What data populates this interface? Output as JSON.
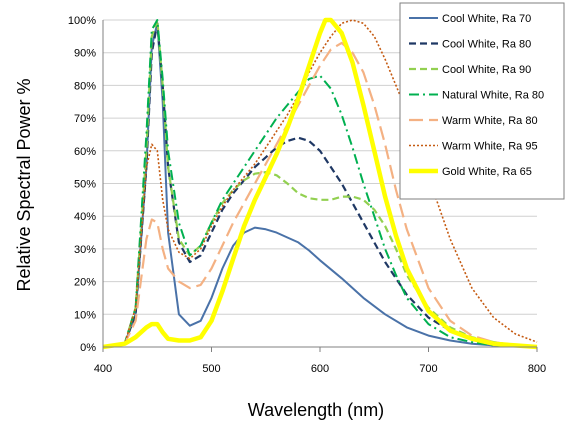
{
  "chart_data": {
    "type": "line",
    "title": "",
    "xlabel": "Wavelength (nm)",
    "ylabel": "Relative Spectral Power %",
    "xlim": [
      400,
      800
    ],
    "ylim": [
      0,
      100
    ],
    "x_ticks": [
      400,
      500,
      600,
      700,
      800
    ],
    "x_tick_labels": [
      "400",
      "500",
      "600",
      "700",
      "800"
    ],
    "y_ticks": [
      0,
      10,
      20,
      30,
      40,
      50,
      60,
      70,
      80,
      90,
      100
    ],
    "y_tick_labels": [
      "0%",
      "10%",
      "20%",
      "30%",
      "40%",
      "50%",
      "60%",
      "70%",
      "80%",
      "90%",
      "100%"
    ],
    "grid": "horizontal",
    "legend_position": "top-right",
    "series": [
      {
        "name": "Cool White, Ra 70",
        "color": "#4a72a8",
        "dash": "solid",
        "x": [
          400,
          420,
          430,
          440,
          445,
          450,
          455,
          460,
          470,
          480,
          490,
          500,
          510,
          520,
          530,
          540,
          550,
          560,
          570,
          580,
          590,
          600,
          620,
          640,
          660,
          680,
          700,
          720,
          740,
          760,
          780,
          800
        ],
        "y": [
          0,
          1,
          10,
          55,
          92,
          99,
          75,
          35,
          10,
          6.5,
          8,
          15,
          24,
          31,
          35,
          36.5,
          36,
          35,
          33.5,
          32,
          29.5,
          26.5,
          21,
          15,
          10,
          6,
          3.5,
          2,
          1,
          0.5,
          0.2,
          0
        ]
      },
      {
        "name": "Cool White, Ra 80",
        "color": "#1f3864",
        "dash": "dashed",
        "x": [
          400,
          420,
          430,
          440,
          445,
          450,
          455,
          460,
          470,
          480,
          490,
          500,
          510,
          520,
          530,
          540,
          550,
          560,
          570,
          580,
          590,
          600,
          610,
          620,
          640,
          660,
          680,
          700,
          720,
          740,
          760,
          780,
          800
        ],
        "y": [
          0,
          1,
          10,
          55,
          90,
          99,
          80,
          55,
          32,
          26,
          28,
          35,
          42,
          47,
          51,
          55,
          58,
          61,
          63,
          64,
          63,
          60,
          55,
          50,
          38,
          26,
          16,
          9,
          5,
          2.5,
          1,
          0.3,
          0
        ]
      },
      {
        "name": "Cool White, Ra 90",
        "color": "#92d050",
        "dash": "dashed",
        "x": [
          400,
          420,
          430,
          440,
          445,
          450,
          455,
          460,
          470,
          480,
          490,
          500,
          510,
          520,
          530,
          540,
          550,
          560,
          570,
          580,
          590,
          600,
          610,
          620,
          630,
          640,
          650,
          660,
          670,
          680,
          700,
          720,
          740,
          760,
          780,
          800
        ],
        "y": [
          0,
          1,
          12,
          60,
          95,
          100,
          80,
          55,
          33,
          28,
          31,
          38,
          44,
          48,
          51,
          53,
          53.5,
          52.5,
          50,
          47,
          45.5,
          45,
          45,
          46,
          46,
          45,
          42,
          37,
          30,
          22,
          12,
          6,
          3,
          1.5,
          0.5,
          0
        ]
      },
      {
        "name": "Natural White, Ra 80",
        "color": "#00b050",
        "dash": "dashdot",
        "x": [
          400,
          420,
          430,
          440,
          445,
          450,
          455,
          460,
          470,
          480,
          490,
          500,
          510,
          520,
          530,
          540,
          550,
          560,
          570,
          580,
          590,
          600,
          610,
          620,
          630,
          640,
          650,
          660,
          670,
          680,
          700,
          720,
          740,
          760,
          780,
          800
        ],
        "y": [
          0,
          1,
          12,
          65,
          97,
          100,
          82,
          60,
          38,
          28,
          31,
          38,
          45,
          50,
          55,
          60,
          65,
          70,
          74,
          78,
          82,
          83,
          79,
          71,
          61,
          50,
          40,
          30,
          22,
          15,
          7,
          3,
          1.5,
          0.5,
          0.2,
          0
        ]
      },
      {
        "name": "Warm White, Ra 80",
        "color": "#f4b183",
        "dash": "longdash",
        "x": [
          400,
          420,
          430,
          440,
          445,
          450,
          455,
          460,
          470,
          480,
          490,
          500,
          510,
          520,
          530,
          540,
          550,
          560,
          570,
          580,
          590,
          600,
          610,
          620,
          630,
          640,
          650,
          660,
          670,
          680,
          700,
          720,
          740,
          760,
          780,
          800
        ],
        "y": [
          0,
          1,
          8,
          33,
          39,
          38,
          30,
          24,
          20,
          18,
          19,
          24,
          31,
          38,
          44,
          50,
          56,
          62,
          68,
          74,
          80,
          86,
          91,
          93,
          90,
          84,
          74,
          62,
          48,
          36,
          18,
          8,
          3.5,
          1.5,
          0.5,
          0
        ]
      },
      {
        "name": "Warm White, Ra 95",
        "color": "#c55a11",
        "dash": "dotted",
        "x": [
          400,
          420,
          430,
          440,
          445,
          450,
          455,
          460,
          470,
          480,
          490,
          500,
          510,
          520,
          530,
          540,
          550,
          560,
          570,
          580,
          590,
          600,
          610,
          620,
          630,
          640,
          650,
          660,
          680,
          700,
          720,
          740,
          760,
          780,
          800
        ],
        "y": [
          0,
          1,
          12,
          55,
          62,
          60,
          45,
          36,
          29,
          27,
          30,
          37,
          43,
          48,
          52,
          56,
          61,
          66,
          71,
          77,
          84,
          90,
          95,
          99,
          100,
          99,
          95,
          88,
          72,
          52,
          33,
          18,
          9,
          4,
          1.5
        ]
      },
      {
        "name": "Gold White, Ra 65",
        "color": "#ffff00",
        "dash": "thick",
        "x": [
          400,
          420,
          430,
          440,
          445,
          450,
          455,
          460,
          470,
          480,
          490,
          500,
          510,
          520,
          530,
          540,
          550,
          560,
          570,
          580,
          590,
          600,
          605,
          610,
          620,
          630,
          640,
          650,
          660,
          670,
          680,
          700,
          720,
          740,
          760,
          780,
          800
        ],
        "y": [
          0,
          1,
          3,
          6,
          7,
          7,
          4.5,
          2.5,
          2,
          2,
          3,
          8,
          17,
          27,
          37,
          45,
          52,
          59,
          67,
          76,
          86,
          96,
          100,
          100,
          96,
          87,
          74,
          60,
          46,
          34,
          24,
          11,
          5,
          2.5,
          1,
          0.5,
          0
        ]
      }
    ]
  }
}
